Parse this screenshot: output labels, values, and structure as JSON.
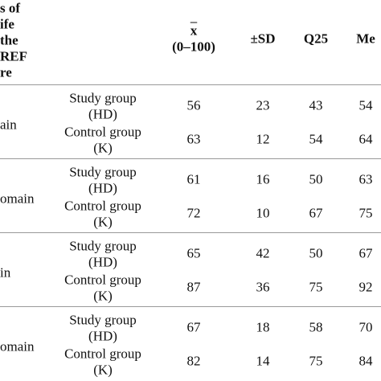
{
  "header": {
    "first_column": [
      "s of",
      "ife",
      "the",
      "REF",
      "re"
    ],
    "columns": [
      {
        "label": "x",
        "sub": "(0–100)"
      },
      {
        "label": "±SD"
      },
      {
        "label": "Q25"
      },
      {
        "label": "Me"
      }
    ]
  },
  "rows": [
    {
      "domain": "ain",
      "groups": [
        {
          "name": "Study group",
          "code": "(HD)",
          "values": [
            "56",
            "23",
            "43",
            "54"
          ]
        },
        {
          "name": "Control group",
          "code": "(K)",
          "values": [
            "63",
            "12",
            "54",
            "64"
          ]
        }
      ]
    },
    {
      "domain": "omain",
      "groups": [
        {
          "name": "Study group",
          "code": "(HD)",
          "values": [
            "61",
            "16",
            "50",
            "63"
          ]
        },
        {
          "name": "Control group",
          "code": "(K)",
          "values": [
            "72",
            "10",
            "67",
            "75"
          ]
        }
      ]
    },
    {
      "domain": "in",
      "groups": [
        {
          "name": "Study group",
          "code": "(HD)",
          "values": [
            "65",
            "42",
            "50",
            "67"
          ]
        },
        {
          "name": "Control group",
          "code": "(K)",
          "values": [
            "87",
            "36",
            "75",
            "92"
          ]
        }
      ]
    },
    {
      "domain": "omain",
      "groups": [
        {
          "name": "Study group",
          "code": "(HD)",
          "values": [
            "67",
            "18",
            "58",
            "70"
          ]
        },
        {
          "name": "Control group",
          "code": "(K)",
          "values": [
            "82",
            "14",
            "75",
            "84"
          ]
        }
      ]
    }
  ]
}
